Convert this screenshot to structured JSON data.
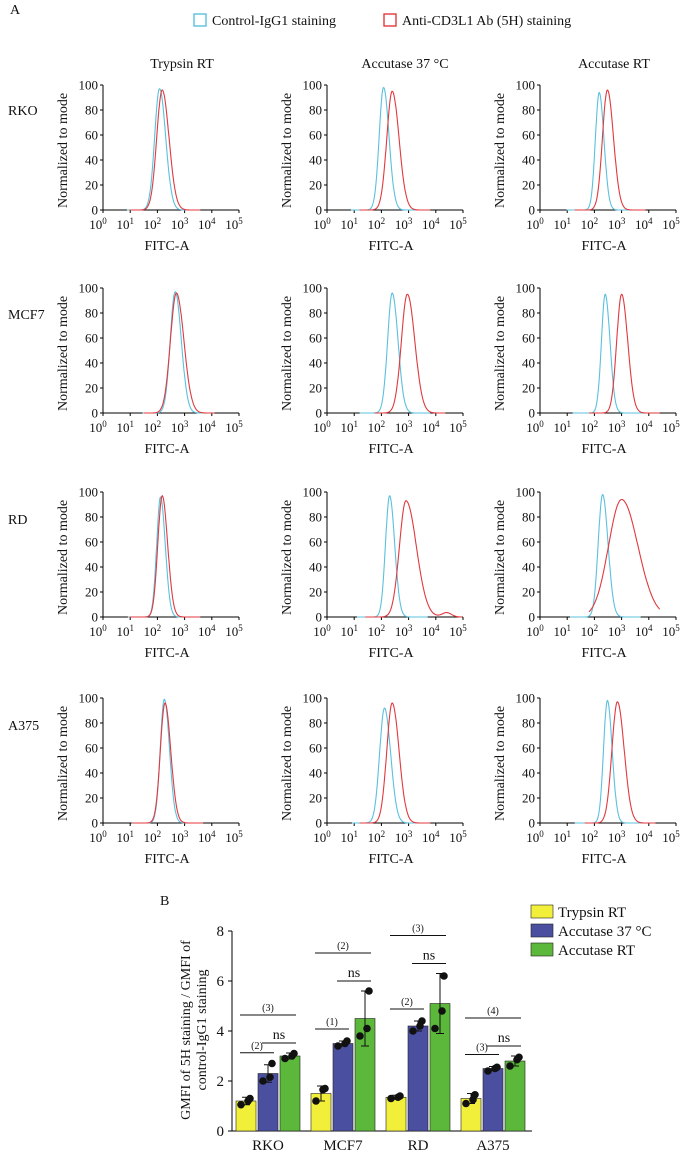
{
  "panel_a_label": "A",
  "panel_b_label": "B",
  "legend_a": {
    "control": "Control-IgG1 staining",
    "anti": "Anti-CD3L1 Ab (5H) staining",
    "control_color": "#5bc0de",
    "anti_color": "#e0393e"
  },
  "columns": [
    "Trypsin RT",
    "Accutase 37 °C",
    "Accutase RT"
  ],
  "rows": [
    "RKO",
    "MCF7",
    "RD",
    "A375"
  ],
  "histogram_axes": {
    "xlabel": "FITC-A",
    "ylabel": "Normalized to mode",
    "yticks": [
      "0",
      "20",
      "40",
      "60",
      "80",
      "100"
    ],
    "xtick_exponents": [
      "0",
      "1",
      "2",
      "3",
      "4",
      "5"
    ],
    "xtick_base": "10"
  },
  "chart_data": [
    {
      "type": "line",
      "panel": "A",
      "x_scale": "log10",
      "xlim": [
        1,
        100000
      ],
      "ylim": [
        0,
        100
      ],
      "xlabel": "FITC-A",
      "ylabel": "Normalized to mode",
      "series_names": [
        "Control-IgG1 staining",
        "Anti-CD3L1 Ab (5H) staining"
      ],
      "histograms": [
        {
          "row": "RKO",
          "col": "Trypsin RT",
          "control": {
            "peak_x": 120,
            "peak_y": 97,
            "width": 0.18
          },
          "anti": {
            "peak_x": 150,
            "peak_y": 96,
            "width": 0.2
          }
        },
        {
          "row": "RKO",
          "col": "Accutase 37 °C",
          "control": {
            "peak_x": 120,
            "peak_y": 98,
            "width": 0.16
          },
          "anti": {
            "peak_x": 250,
            "peak_y": 95,
            "width": 0.2
          }
        },
        {
          "row": "RKO",
          "col": "Accutase RT",
          "control": {
            "peak_x": 150,
            "peak_y": 94,
            "width": 0.14
          },
          "anti": {
            "peak_x": 300,
            "peak_y": 96,
            "width": 0.18
          }
        },
        {
          "row": "MCF7",
          "col": "Trypsin RT",
          "control": {
            "peak_x": 450,
            "peak_y": 97,
            "width": 0.18
          },
          "anti": {
            "peak_x": 500,
            "peak_y": 96,
            "width": 0.22
          }
        },
        {
          "row": "MCF7",
          "col": "Accutase 37 °C",
          "control": {
            "peak_x": 250,
            "peak_y": 96,
            "width": 0.17
          },
          "anti": {
            "peak_x": 900,
            "peak_y": 95,
            "width": 0.22
          }
        },
        {
          "row": "MCF7",
          "col": "Accutase RT",
          "control": {
            "peak_x": 250,
            "peak_y": 95,
            "width": 0.14
          },
          "anti": {
            "peak_x": 1000,
            "peak_y": 95,
            "width": 0.18
          }
        },
        {
          "row": "RD",
          "col": "Trypsin RT",
          "control": {
            "peak_x": 130,
            "peak_y": 96,
            "width": 0.14
          },
          "anti": {
            "peak_x": 150,
            "peak_y": 97,
            "width": 0.16
          }
        },
        {
          "row": "RD",
          "col": "Accutase 37 °C",
          "control": {
            "peak_x": 200,
            "peak_y": 97,
            "width": 0.15
          },
          "anti": {
            "peak_x": 800,
            "peak_y": 93,
            "width": 0.24
          }
        },
        {
          "row": "RD",
          "col": "Accutase RT",
          "control": {
            "peak_x": 200,
            "peak_y": 98,
            "width": 0.16
          },
          "anti": {
            "peak_x": 1000,
            "peak_y": 94,
            "width": 0.48
          }
        },
        {
          "row": "A375",
          "col": "Trypsin RT",
          "control": {
            "peak_x": 180,
            "peak_y": 99,
            "width": 0.15
          },
          "anti": {
            "peak_x": 190,
            "peak_y": 96,
            "width": 0.17
          }
        },
        {
          "row": "A375",
          "col": "Accutase 37 °C",
          "control": {
            "peak_x": 130,
            "peak_y": 92,
            "width": 0.18
          },
          "anti": {
            "peak_x": 250,
            "peak_y": 96,
            "width": 0.2
          }
        },
        {
          "row": "A375",
          "col": "Accutase RT",
          "control": {
            "peak_x": 300,
            "peak_y": 98,
            "width": 0.14
          },
          "anti": {
            "peak_x": 700,
            "peak_y": 97,
            "width": 0.2
          }
        }
      ]
    },
    {
      "type": "bar",
      "panel": "B",
      "categories": [
        "RKO",
        "MCF7",
        "RD",
        "A375"
      ],
      "ylabel": "GMFI of 5H staining / GMFI of control-IgG1 staining",
      "ylim": [
        0,
        8
      ],
      "yticks": [
        "0",
        "2",
        "4",
        "6",
        "8"
      ],
      "legend_position": "top-right",
      "series": [
        {
          "name": "Trypsin RT",
          "color": "#f2ef3a",
          "values": [
            1.2,
            1.5,
            1.35,
            1.3
          ],
          "errors": [
            0.15,
            0.3,
            0.08,
            0.2
          ],
          "points": [
            [
              1.05,
              1.2,
              1.3
            ],
            [
              1.2,
              1.65,
              1.7
            ],
            [
              1.3,
              1.35,
              1.4
            ],
            [
              1.1,
              1.25,
              1.45
            ]
          ]
        },
        {
          "name": "Accutase 37 °C",
          "color": "#4b4fa0",
          "values": [
            2.3,
            3.5,
            4.2,
            2.5
          ],
          "errors": [
            0.35,
            0.1,
            0.2,
            0.08
          ],
          "points": [
            [
              2.0,
              2.15,
              2.7
            ],
            [
              3.4,
              3.5,
              3.6
            ],
            [
              4.0,
              4.2,
              4.4
            ],
            [
              2.4,
              2.5,
              2.55
            ]
          ]
        },
        {
          "name": "Accutase RT",
          "color": "#5cb83a",
          "values": [
            3.0,
            4.5,
            5.1,
            2.8
          ],
          "errors": [
            0.12,
            1.1,
            1.2,
            0.2
          ],
          "points": [
            [
              2.9,
              3.0,
              3.1
            ],
            [
              3.8,
              4.1,
              5.6
            ],
            [
              4.1,
              4.8,
              6.2
            ],
            [
              2.6,
              2.85,
              2.95
            ]
          ]
        }
      ],
      "annotations": [
        {
          "group": "RKO",
          "from": 0,
          "to": 1,
          "label": "(2)",
          "level": 1
        },
        {
          "group": "RKO",
          "from": 1,
          "to": 2,
          "label": "ns",
          "level": 2
        },
        {
          "group": "RKO",
          "from": 0,
          "to": 2,
          "label": "(3)",
          "level": 3
        },
        {
          "group": "MCF7",
          "from": 0,
          "to": 1,
          "label": "(1)",
          "level": 1
        },
        {
          "group": "MCF7",
          "from": 1,
          "to": 2,
          "label": "ns",
          "level": 2
        },
        {
          "group": "MCF7",
          "from": 0,
          "to": 2,
          "label": "(2)",
          "level": 3
        },
        {
          "group": "RD",
          "from": 0,
          "to": 1,
          "label": "(2)",
          "level": 1
        },
        {
          "group": "RD",
          "from": 1,
          "to": 2,
          "label": "ns",
          "level": 2
        },
        {
          "group": "RD",
          "from": 0,
          "to": 2,
          "label": "(3)",
          "level": 3
        },
        {
          "group": "A375",
          "from": 0,
          "to": 1,
          "label": "(3)",
          "level": 1
        },
        {
          "group": "A375",
          "from": 1,
          "to": 2,
          "label": "ns",
          "level": 2
        },
        {
          "group": "A375",
          "from": 0,
          "to": 2,
          "label": "(4)",
          "level": 3
        }
      ]
    }
  ]
}
